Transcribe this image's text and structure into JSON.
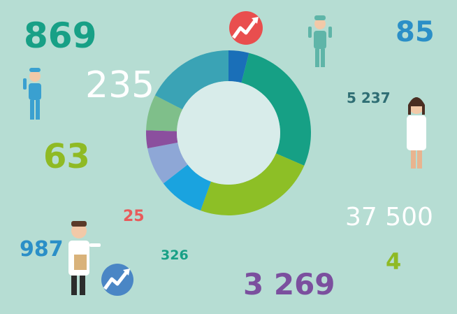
{
  "chart_data": {
    "type": "pie",
    "donut": true,
    "values": [
      4,
      27.5,
      24,
      9,
      7.5,
      3.5,
      7,
      17.5
    ],
    "colors": [
      "#1a6fb8",
      "#16a085",
      "#8dbf26",
      "#1aa3df",
      "#8ea7d6",
      "#8b4f9e",
      "#7fbf8a",
      "#3aa3b5"
    ]
  },
  "figures": [
    {
      "text": "869",
      "color": "#18a086"
    },
    {
      "text": "85",
      "color": "#2b8fc7"
    },
    {
      "text": "235",
      "color": "#ffffff"
    },
    {
      "text": "5 237",
      "color": "#2f6e74"
    },
    {
      "text": "63",
      "color": "#8fba24"
    },
    {
      "text": "37 500",
      "color": "#ffffff"
    },
    {
      "text": "25",
      "color": "#e85b5b"
    },
    {
      "text": "987",
      "color": "#2b8fc7"
    },
    {
      "text": "326",
      "color": "#18a086"
    },
    {
      "text": "4",
      "color": "#8fba24"
    },
    {
      "text": "3 269",
      "color": "#7b4f9e"
    }
  ]
}
